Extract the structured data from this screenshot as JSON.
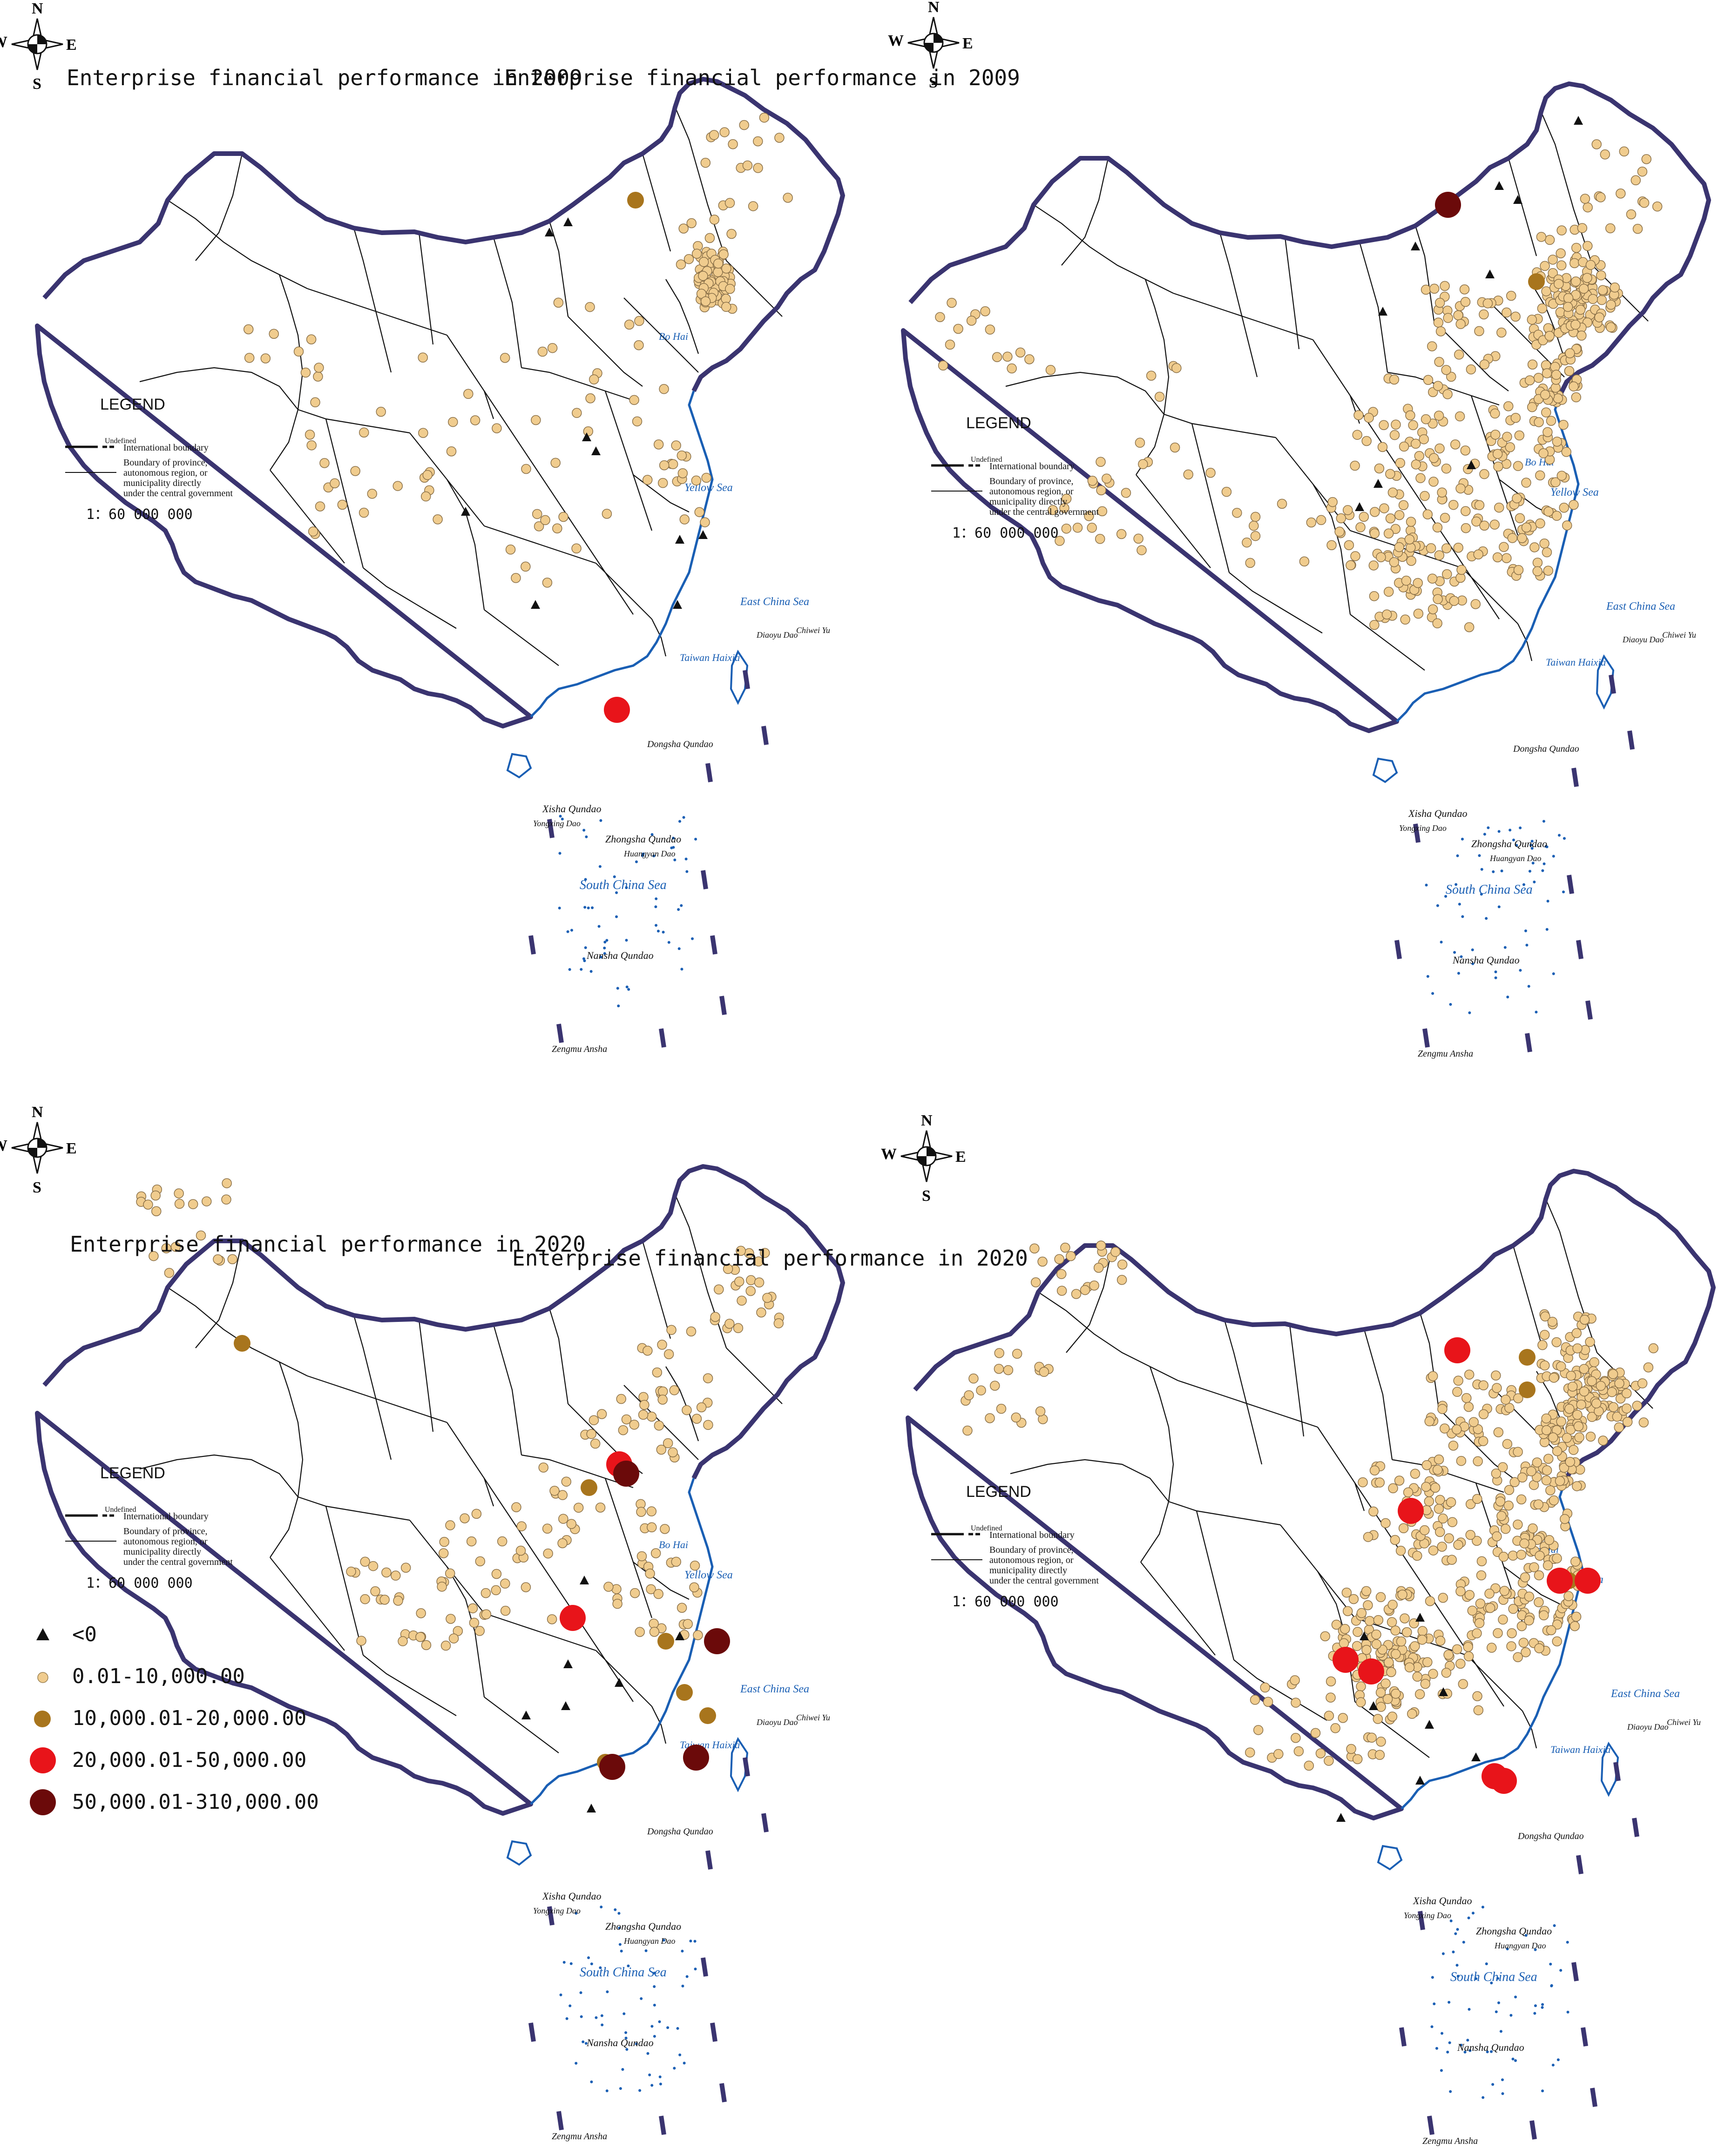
{
  "compass": {
    "n": "N",
    "s": "S",
    "e": "E",
    "w": "W"
  },
  "panels": [
    {
      "title": "Enterprise financial performance in 2009"
    },
    {
      "title": "Enterprise financial performance in 2009"
    },
    {
      "title": "Enterprise financial performance in 2020"
    },
    {
      "title": "Enterprise financial performance in 2020"
    }
  ],
  "map_legend": {
    "heading": "LEGEND",
    "undefined_label": "Undefined",
    "intl_boundary": "International boundary",
    "prov_boundary": "Boundary of province, autonomous region, or municipality directly under the central government",
    "scale": "1：60 000 000"
  },
  "place_labels": {
    "bohai": "Bo Hai",
    "yellow_sea": "Yellow Sea",
    "east_china_sea": "East China Sea",
    "diaoyu": "Diaoyu Dao",
    "chiwei": "Chiwei Yu",
    "taiwan_strait": "Taiwan Haixia",
    "dongsha": "Dongsha Qundao",
    "xisha": "Xisha Qundao",
    "yongxing": "Yongxing Dao",
    "zhongsha": "Zhongsha Qundao",
    "huangyan": "Huangyan Dao",
    "south_china_sea": "South China Sea",
    "nansha": "Nansha Qundao",
    "zengmu": "Zengmu Ansha"
  },
  "symbol_legend": [
    {
      "label": "<0",
      "shape": "triangle",
      "color": "#111111"
    },
    {
      "label": "0.01-10,000.00",
      "shape": "circle",
      "color": "#f0cc8e"
    },
    {
      "label": "10,000.01-20,000.00",
      "shape": "circle",
      "color": "#a8751d"
    },
    {
      "label": "20,000.01-50,000.00",
      "shape": "circle",
      "color": "#e8141a"
    },
    {
      "label": "50,000.01-310,000.00",
      "shape": "circle",
      "color": "#6b0a0a"
    }
  ],
  "colors": {
    "border": "#3a3470",
    "river": "#1a5fb4",
    "province": "#111111"
  }
}
